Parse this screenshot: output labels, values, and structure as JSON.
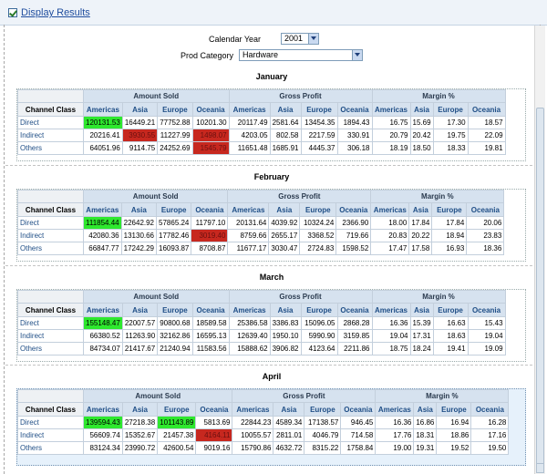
{
  "header": {
    "checkbox_label": "Display Results"
  },
  "params": {
    "year_label": "Calendar Year",
    "year_value": "2001",
    "category_label": "Prod Category",
    "category_value": "Hardware"
  },
  "table_headers": {
    "channel_class": "Channel Class",
    "groups": [
      "Amount Sold",
      "Gross Profit",
      "Margin %"
    ],
    "regions": [
      "Americas",
      "Asia",
      "Europe",
      "Oceania"
    ]
  },
  "colors": {
    "green": "#2ee82e",
    "red": "#c7281f"
  },
  "months": [
    {
      "name": "January",
      "rows": [
        {
          "label": "Direct",
          "values": [
            "120131.53",
            "16449.21",
            "77752.88",
            "10201.30",
            "20117.49",
            "2581.64",
            "13454.35",
            "1894.43",
            "16.75",
            "15.69",
            "17.30",
            "18.57"
          ],
          "status": [
            "green",
            "",
            "",
            "",
            "",
            "",
            "",
            "",
            "",
            "",
            "",
            ""
          ]
        },
        {
          "label": "Indirect",
          "values": [
            "20216.41",
            "3930.55",
            "11227.99",
            "1498.07",
            "4203.05",
            "802.58",
            "2217.59",
            "330.91",
            "20.79",
            "20.42",
            "19.75",
            "22.09"
          ],
          "status": [
            "",
            "red",
            "",
            "red",
            "",
            "",
            "",
            "",
            "",
            "",
            "",
            ""
          ]
        },
        {
          "label": "Others",
          "values": [
            "64051.96",
            "9114.75",
            "24252.69",
            "1545.79",
            "11651.48",
            "1685.91",
            "4445.37",
            "306.18",
            "18.19",
            "18.50",
            "18.33",
            "19.81"
          ],
          "status": [
            "",
            "",
            "",
            "red",
            "",
            "",
            "",
            "",
            "",
            "",
            "",
            ""
          ]
        }
      ]
    },
    {
      "name": "February",
      "rows": [
        {
          "label": "Direct",
          "values": [
            "111854.44",
            "22642.92",
            "57865.24",
            "11797.10",
            "20131.64",
            "4039.92",
            "10324.24",
            "2366.90",
            "18.00",
            "17.84",
            "17.84",
            "20.06"
          ],
          "status": [
            "green",
            "",
            "",
            "",
            "",
            "",
            "",
            "",
            "",
            "",
            "",
            ""
          ]
        },
        {
          "label": "Indirect",
          "values": [
            "42080.36",
            "13130.66",
            "17782.46",
            "3019.40",
            "8759.66",
            "2655.17",
            "3368.52",
            "719.66",
            "20.83",
            "20.22",
            "18.94",
            "23.83"
          ],
          "status": [
            "",
            "",
            "",
            "red",
            "",
            "",
            "",
            "",
            "",
            "",
            "",
            ""
          ]
        },
        {
          "label": "Others",
          "values": [
            "66847.77",
            "17242.29",
            "16093.87",
            "8708.87",
            "11677.17",
            "3030.47",
            "2724.83",
            "1598.52",
            "17.47",
            "17.58",
            "16.93",
            "18.36"
          ],
          "status": [
            "",
            "",
            "",
            "",
            "",
            "",
            "",
            "",
            "",
            "",
            "",
            ""
          ]
        }
      ]
    },
    {
      "name": "March",
      "rows": [
        {
          "label": "Direct",
          "values": [
            "155148.47",
            "22007.57",
            "90800.68",
            "18589.58",
            "25386.58",
            "3386.83",
            "15096.05",
            "2868.28",
            "16.36",
            "15.39",
            "16.63",
            "15.43"
          ],
          "status": [
            "green",
            "",
            "",
            "",
            "",
            "",
            "",
            "",
            "",
            "",
            "",
            ""
          ]
        },
        {
          "label": "Indirect",
          "values": [
            "66380.52",
            "11263.90",
            "32162.86",
            "16595.13",
            "12639.40",
            "1950.10",
            "5990.90",
            "3159.85",
            "19.04",
            "17.31",
            "18.63",
            "19.04"
          ],
          "status": [
            "",
            "",
            "",
            "",
            "",
            "",
            "",
            "",
            "",
            "",
            "",
            ""
          ]
        },
        {
          "label": "Others",
          "values": [
            "84734.07",
            "21417.67",
            "21240.94",
            "11583.56",
            "15888.62",
            "3906.82",
            "4123.64",
            "2211.86",
            "18.75",
            "18.24",
            "19.41",
            "19.09"
          ],
          "status": [
            "",
            "",
            "",
            "",
            "",
            "",
            "",
            "",
            "",
            "",
            "",
            ""
          ]
        }
      ]
    },
    {
      "name": "April",
      "rows": [
        {
          "label": "Direct",
          "values": [
            "139594.43",
            "27218.38",
            "101143.89",
            "5813.69",
            "22844.23",
            "4589.34",
            "17138.57",
            "946.45",
            "16.36",
            "16.86",
            "16.94",
            "16.28"
          ],
          "status": [
            "green",
            "",
            "green",
            "",
            "",
            "",
            "",
            "",
            "",
            "",
            "",
            ""
          ]
        },
        {
          "label": "Indirect",
          "values": [
            "56609.74",
            "15352.67",
            "21457.38",
            "4164.11",
            "10055.57",
            "2811.01",
            "4046.79",
            "714.58",
            "17.76",
            "18.31",
            "18.86",
            "17.16"
          ],
          "status": [
            "",
            "",
            "",
            "red",
            "",
            "",
            "",
            "",
            "",
            "",
            "",
            ""
          ]
        },
        {
          "label": "Others",
          "values": [
            "83124.34",
            "23990.72",
            "42600.54",
            "9019.16",
            "15790.86",
            "4632.72",
            "8315.22",
            "1758.84",
            "19.00",
            "19.31",
            "19.52",
            "19.50"
          ],
          "status": [
            "",
            "",
            "",
            "",
            "",
            "",
            "",
            "",
            "",
            "",
            "",
            ""
          ]
        }
      ]
    }
  ]
}
